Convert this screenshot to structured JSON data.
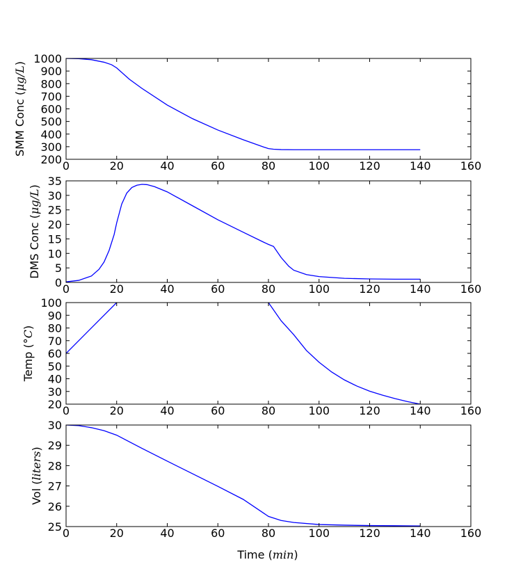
{
  "chart_data": [
    {
      "type": "line",
      "ylabel": "SMM Conc",
      "ylabel_unit": "μg/L",
      "xlim": [
        0,
        160
      ],
      "ylim": [
        200,
        1000
      ],
      "xticks": [
        0,
        20,
        40,
        60,
        80,
        100,
        120,
        140,
        160
      ],
      "yticks": [
        200,
        300,
        400,
        500,
        600,
        700,
        800,
        900,
        1000
      ],
      "line_color": "#0000ff",
      "grid": false,
      "series": [
        {
          "x": [
            0,
            5,
            10,
            15,
            18,
            20,
            25,
            30,
            40,
            50,
            60,
            70,
            78,
            80,
            82,
            85,
            90,
            100,
            110,
            120,
            130,
            140
          ],
          "y": [
            1000,
            998,
            990,
            970,
            950,
            925,
            835,
            762,
            630,
            522,
            432,
            355,
            298,
            285,
            280,
            277,
            276,
            276,
            276,
            276,
            276,
            276
          ]
        }
      ]
    },
    {
      "type": "line",
      "ylabel": "DMS Conc",
      "ylabel_unit": "μg/L",
      "xlim": [
        0,
        160
      ],
      "ylim": [
        0,
        35
      ],
      "xticks": [
        0,
        20,
        40,
        60,
        80,
        100,
        120,
        140,
        160
      ],
      "yticks": [
        0,
        5,
        10,
        15,
        20,
        25,
        30,
        35
      ],
      "line_color": "#0000ff",
      "grid": false,
      "series": [
        {
          "x": [
            0,
            5,
            10,
            13,
            15,
            17,
            19,
            20,
            22,
            24,
            26,
            28,
            30,
            32,
            35,
            40,
            50,
            60,
            70,
            78,
            80,
            82,
            85,
            88,
            90,
            95,
            100,
            110,
            120,
            130,
            140
          ],
          "y": [
            0.2,
            0.7,
            2.2,
            4.5,
            7.0,
            11.0,
            16.5,
            20.5,
            27.0,
            30.8,
            32.7,
            33.5,
            33.8,
            33.7,
            33.0,
            31.2,
            26.4,
            21.6,
            17.3,
            13.9,
            13.1,
            12.4,
            8.6,
            5.6,
            4.2,
            2.7,
            2.0,
            1.4,
            1.2,
            1.1,
            1.1
          ]
        }
      ]
    },
    {
      "type": "line",
      "ylabel": "Temp",
      "ylabel_unit": "°C",
      "xlim": [
        0,
        160
      ],
      "ylim": [
        20,
        100
      ],
      "xticks": [
        0,
        20,
        40,
        60,
        80,
        100,
        120,
        140,
        160
      ],
      "yticks": [
        20,
        30,
        40,
        50,
        60,
        70,
        80,
        90,
        100
      ],
      "line_color": "#0000ff",
      "grid": false,
      "series": [
        {
          "x": [
            0,
            20
          ],
          "y": [
            60,
            100
          ]
        },
        {
          "x": [
            80,
            85,
            90,
            95,
            100,
            105,
            110,
            115,
            120,
            125,
            130,
            135,
            140
          ],
          "y": [
            100,
            85.7,
            74.7,
            62.3,
            53.0,
            45.3,
            39.1,
            34.2,
            30.2,
            27.1,
            24.4,
            22.0,
            20.0
          ]
        }
      ]
    },
    {
      "type": "line",
      "ylabel": "Vol",
      "ylabel_unit": "liters",
      "xlabel": "Time",
      "xlabel_unit": "min",
      "xlim": [
        0,
        160
      ],
      "ylim": [
        25,
        30
      ],
      "xticks": [
        0,
        20,
        40,
        60,
        80,
        100,
        120,
        140,
        160
      ],
      "yticks": [
        25,
        26,
        27,
        28,
        29,
        30
      ],
      "line_color": "#0000ff",
      "grid": false,
      "series": [
        {
          "x": [
            0,
            5,
            10,
            15,
            20,
            30,
            40,
            50,
            60,
            70,
            80,
            85,
            90,
            100,
            110,
            120,
            130,
            140
          ],
          "y": [
            30,
            29.97,
            29.87,
            29.72,
            29.5,
            28.85,
            28.22,
            27.6,
            26.98,
            26.34,
            25.5,
            25.3,
            25.2,
            25.1,
            25.07,
            25.05,
            25.04,
            25.03
          ]
        }
      ]
    }
  ]
}
